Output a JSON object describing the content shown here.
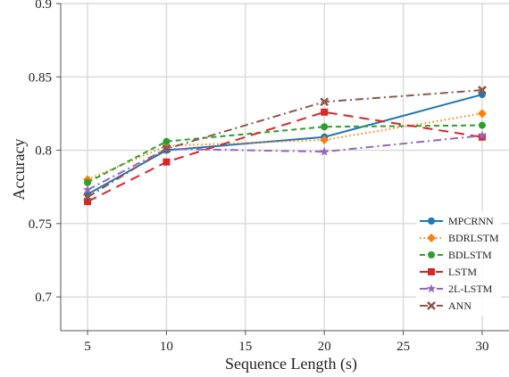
{
  "chart_data": {
    "type": "line",
    "xlabel": "Sequence Length (s)",
    "ylabel": "Accuracy",
    "xlim": [
      3.3,
      31.7
    ],
    "ylim": [
      0.677,
      0.9
    ],
    "x_ticks": [
      5,
      10,
      15,
      20,
      25,
      30
    ],
    "x_tick_labels": [
      "5",
      "10",
      "15",
      "20",
      "25",
      "30"
    ],
    "y_ticks": [
      0.7,
      0.75,
      0.8,
      0.85,
      0.9
    ],
    "y_tick_labels": [
      "0.7",
      "0.75",
      "0.8",
      "0.85",
      "0.9"
    ],
    "grid": true,
    "legend_position": "bottom-right",
    "x": [
      5,
      10,
      20,
      30
    ],
    "series": [
      {
        "name": "MPCRNN",
        "color": "#1f77b4",
        "dash": "solid",
        "marker": "circle",
        "values": [
          0.77,
          0.8,
          0.809,
          0.838
        ]
      },
      {
        "name": "BDRLSTM",
        "color": "#ff7f0e",
        "dash": "dotted",
        "marker": "diamond",
        "values": [
          0.78,
          0.803,
          0.807,
          0.825
        ]
      },
      {
        "name": "BDLSTM",
        "color": "#2ca02c",
        "dash": "dashed",
        "marker": "circle",
        "values": [
          0.778,
          0.806,
          0.816,
          0.817
        ]
      },
      {
        "name": "LSTM",
        "color": "#d62728",
        "dash": "longdash",
        "marker": "square",
        "values": [
          0.765,
          0.792,
          0.826,
          0.809
        ]
      },
      {
        "name": "2L-LSTM",
        "color": "#9467bd",
        "dash": "dashdot",
        "marker": "star",
        "values": [
          0.773,
          0.801,
          0.799,
          0.81
        ]
      },
      {
        "name": "ANN",
        "color": "#8c564b",
        "dash": "dashdot2",
        "marker": "x",
        "values": [
          0.768,
          0.801,
          0.833,
          0.841
        ]
      }
    ]
  }
}
